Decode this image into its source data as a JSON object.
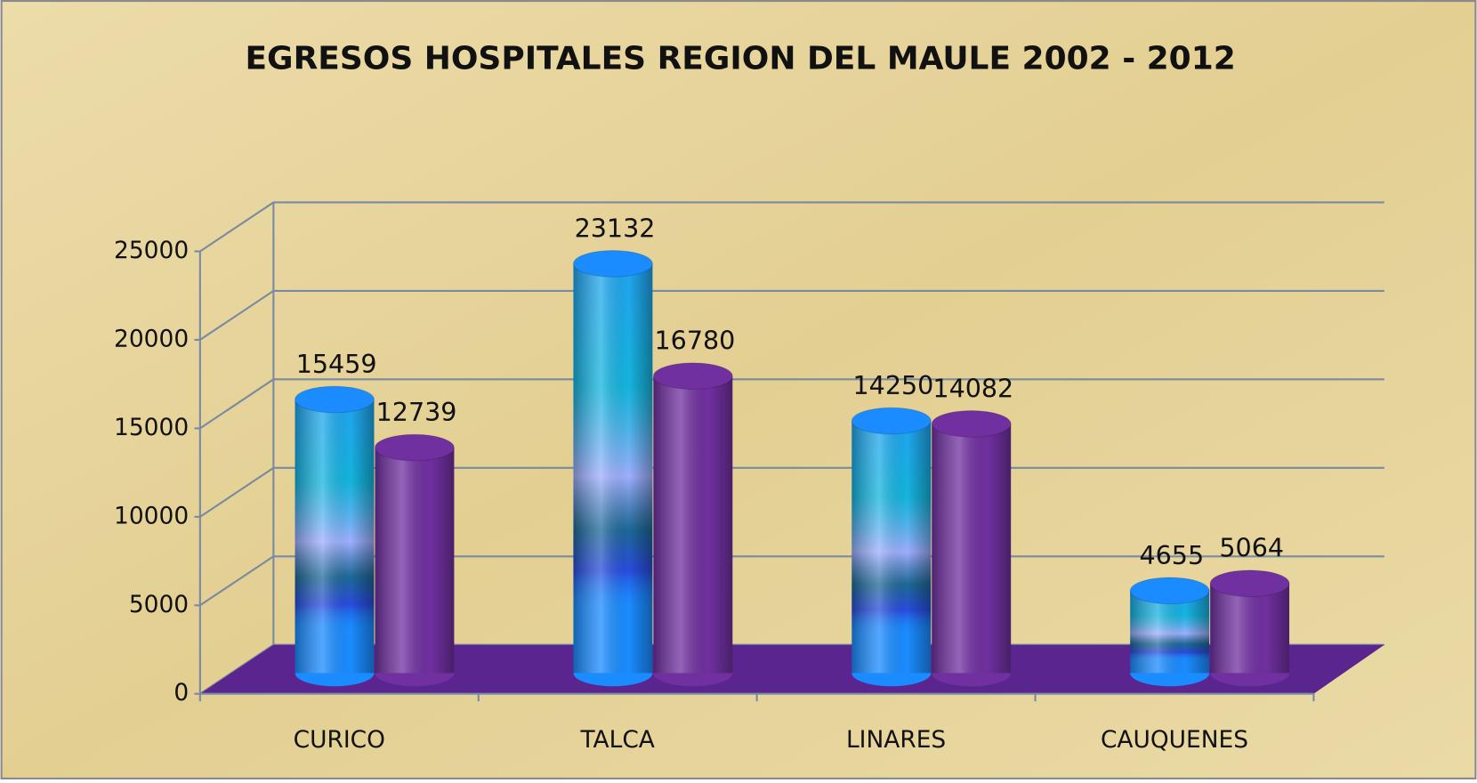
{
  "chart_data": {
    "type": "bar3d",
    "title": "EGRESOS HOSPITALES REGION DEL MAULE 2002 - 2012",
    "categories": [
      "CURICO",
      "TALCA",
      "LINARES",
      "CAUQUENES"
    ],
    "series": [
      {
        "color": "#1a8cff",
        "values": [
          15459,
          23132,
          14250,
          4655
        ]
      },
      {
        "color": "#7030a0",
        "values": [
          12739,
          16780,
          14082,
          5064
        ]
      }
    ],
    "ylim": [
      0,
      25000
    ],
    "yticks": [
      0,
      5000,
      10000,
      15000,
      20000,
      25000
    ],
    "grid": true,
    "floor_color": "#5b2590"
  }
}
